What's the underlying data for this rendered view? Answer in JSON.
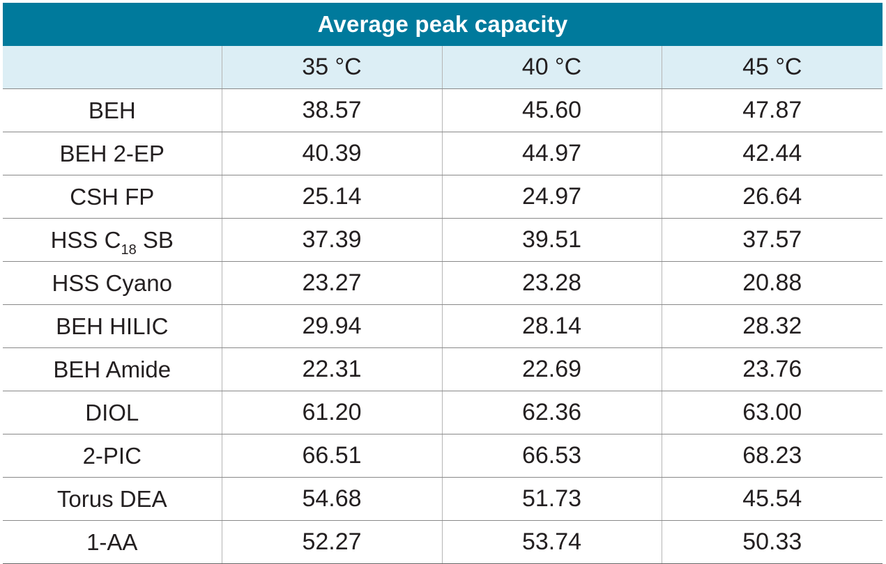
{
  "table": {
    "title": "Average peak capacity",
    "headers": [
      "",
      "35 °C",
      "40 °C",
      "45 °C"
    ],
    "rows": [
      {
        "label": "BEH",
        "values": [
          "38.57",
          "45.60",
          "47.87"
        ]
      },
      {
        "label": "BEH 2-EP",
        "values": [
          "40.39",
          "44.97",
          "42.44"
        ]
      },
      {
        "label": "CSH FP",
        "values": [
          "25.14",
          "24.97",
          "26.64"
        ]
      },
      {
        "label_prefix": "HSS C",
        "label_sub": "18",
        "label_suffix": " SB",
        "values": [
          "37.39",
          "39.51",
          "37.57"
        ]
      },
      {
        "label": "HSS Cyano",
        "values": [
          "23.27",
          "23.28",
          "20.88"
        ]
      },
      {
        "label": "BEH HILIC",
        "values": [
          "29.94",
          "28.14",
          "28.32"
        ]
      },
      {
        "label": "BEH Amide",
        "values": [
          "22.31",
          "22.69",
          "23.76"
        ]
      },
      {
        "label": "DIOL",
        "values": [
          "61.20",
          "62.36",
          "63.00"
        ]
      },
      {
        "label": "2-PIC",
        "values": [
          "66.51",
          "66.53",
          "68.23"
        ]
      },
      {
        "label": "Torus DEA",
        "values": [
          "54.68",
          "51.73",
          "45.54"
        ]
      },
      {
        "label": "1-AA",
        "values": [
          "52.27",
          "53.74",
          "50.33"
        ]
      }
    ]
  },
  "colors": {
    "title_bg": "#007a9c",
    "header_bg": "#dceef5",
    "title_text": "#ffffff"
  }
}
